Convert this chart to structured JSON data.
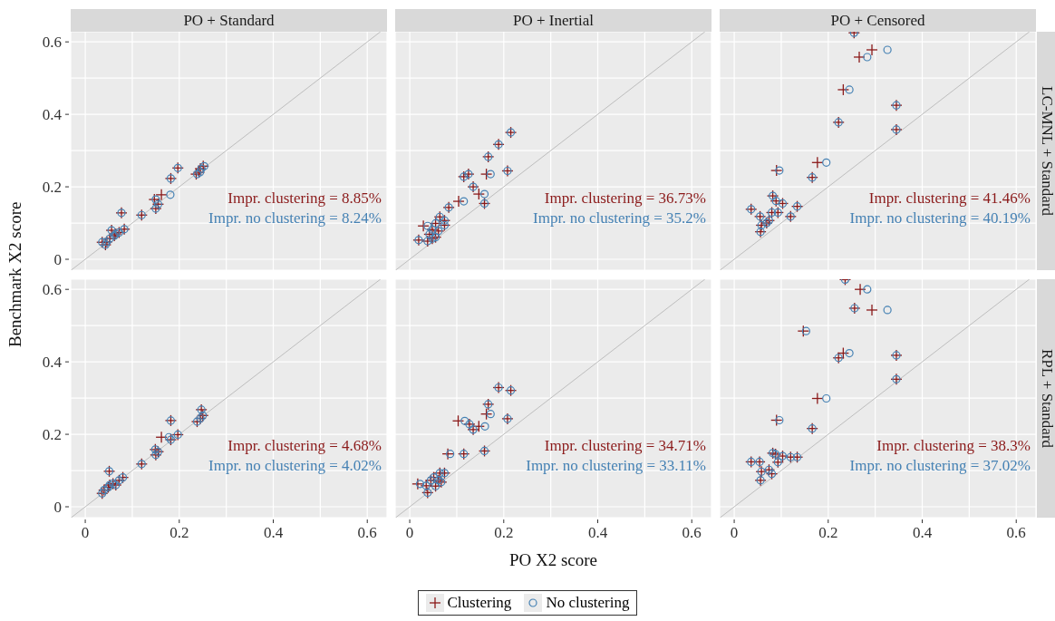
{
  "chart_data": [
    {
      "type": "scatter",
      "title": "PO + Standard",
      "ylabel": "Benchmark X2 score",
      "xlim": [
        -0.031,
        0.642
      ],
      "ylim": [
        -0.03,
        0.628
      ],
      "xticks": [
        0,
        {
          "value": 0.1,
          "label": null
        },
        0.2,
        {
          "value": 0.3,
          "label": null
        },
        0.4,
        {
          "value": 0.5,
          "label": null
        },
        0.6
      ],
      "yticks": [
        0,
        {
          "value": 0.1,
          "label": null
        },
        0.2,
        {
          "value": 0.3,
          "label": null
        },
        0.4,
        {
          "value": 0.5,
          "label": null
        },
        0.6
      ],
      "grid": true,
      "tick_labels": "y",
      "legend": "bottom",
      "annotations": [
        "Impr. clustering = 8.85%",
        "Impr. no clustering = 8.24%"
      ],
      "series": [
        {
          "type": "line",
          "color": "#bdbdbd",
          "x": [
            -0.03,
            0.628
          ],
          "values": [
            -0.03,
            0.628
          ]
        },
        {
          "name": "Clustering",
          "color": "#8b1a1a",
          "marker": "cross",
          "x": [
            0.251,
            0.245,
            0.242,
            0.236,
            0.197,
            0.182,
            0.162,
            0.147,
            0.155,
            0.15,
            0.077,
            0.12,
            0.083,
            0.056,
            0.072,
            0.065,
            0.062,
            0.052,
            0.046,
            0.036,
            0.043
          ],
          "values": [
            0.257,
            0.25,
            0.24,
            0.235,
            0.252,
            0.223,
            0.178,
            0.165,
            0.152,
            0.14,
            0.128,
            0.122,
            0.083,
            0.08,
            0.074,
            0.07,
            0.065,
            0.057,
            0.048,
            0.047,
            0.04
          ]
        },
        {
          "name": "No clustering",
          "color": "#4682b4",
          "marker": "circle",
          "x": [
            0.253,
            0.247,
            0.244,
            0.238,
            0.197,
            0.182,
            0.181,
            0.15,
            0.155,
            0.15,
            0.077,
            0.12,
            0.083,
            0.056,
            0.072,
            0.065,
            0.062,
            0.052,
            0.046,
            0.036,
            0.043
          ],
          "values": [
            0.257,
            0.25,
            0.24,
            0.235,
            0.252,
            0.223,
            0.178,
            0.165,
            0.152,
            0.14,
            0.128,
            0.122,
            0.083,
            0.08,
            0.074,
            0.07,
            0.065,
            0.057,
            0.048,
            0.047,
            0.04
          ]
        }
      ]
    },
    {
      "type": "scatter",
      "title": "PO + Inertial",
      "xlim": [
        -0.031,
        0.642
      ],
      "ylim": [
        -0.03,
        0.628
      ],
      "xticks": [
        0,
        {
          "value": 0.1,
          "label": null
        },
        0.2,
        {
          "value": 0.3,
          "label": null
        },
        0.4,
        {
          "value": 0.5,
          "label": null
        },
        0.6
      ],
      "yticks": [
        0,
        {
          "value": 0.1,
          "label": null
        },
        0.2,
        {
          "value": 0.3,
          "label": null
        },
        0.4,
        {
          "value": 0.5,
          "label": null
        },
        0.6
      ],
      "grid": true,
      "tick_labels": false,
      "annotations": [
        "Impr. clustering = 36.73%",
        "Impr. no clustering = 35.2%"
      ],
      "series": [
        {
          "type": "line",
          "color": "#bdbdbd",
          "x": [
            -0.03,
            0.628
          ],
          "values": [
            -0.03,
            0.628
          ]
        },
        {
          "color": "#8b1a1a",
          "marker": "cross",
          "x": [
            0.215,
            0.189,
            0.167,
            0.208,
            0.163,
            0.125,
            0.115,
            0.135,
            0.147,
            0.159,
            0.104,
            0.083,
            0.064,
            0.074,
            0.055,
            0.074,
            0.029,
            0.048,
            0.061,
            0.042,
            0.055,
            0.019,
            0.038,
            0.048
          ],
          "values": [
            0.35,
            0.317,
            0.283,
            0.244,
            0.235,
            0.235,
            0.228,
            0.2,
            0.18,
            0.154,
            0.16,
            0.143,
            0.117,
            0.107,
            0.099,
            0.094,
            0.092,
            0.082,
            0.078,
            0.069,
            0.061,
            0.053,
            0.05,
            0.057
          ]
        },
        {
          "color": "#4682b4",
          "marker": "circle",
          "x": [
            0.215,
            0.189,
            0.167,
            0.208,
            0.172,
            0.125,
            0.115,
            0.135,
            0.159,
            0.159,
            0.115,
            0.083,
            0.064,
            0.074,
            0.055,
            0.074,
            0.038,
            0.048,
            0.061,
            0.042,
            0.055,
            0.019,
            0.038,
            0.048
          ],
          "values": [
            0.35,
            0.317,
            0.283,
            0.244,
            0.235,
            0.235,
            0.228,
            0.2,
            0.18,
            0.154,
            0.16,
            0.143,
            0.117,
            0.107,
            0.099,
            0.094,
            0.092,
            0.082,
            0.078,
            0.069,
            0.061,
            0.053,
            0.05,
            0.057
          ]
        }
      ]
    },
    {
      "type": "scatter",
      "title": "PO + Censored",
      "y2label": "LC-MNL + Standard",
      "xlim": [
        -0.031,
        0.642
      ],
      "ylim": [
        -0.03,
        0.628
      ],
      "xticks": [
        0,
        {
          "value": 0.1,
          "label": null
        },
        0.2,
        {
          "value": 0.3,
          "label": null
        },
        0.4,
        {
          "value": 0.5,
          "label": null
        },
        0.6
      ],
      "yticks": [
        0,
        {
          "value": 0.1,
          "label": null
        },
        0.2,
        {
          "value": 0.3,
          "label": null
        },
        0.4,
        {
          "value": 0.5,
          "label": null
        },
        0.6
      ],
      "grid": true,
      "tick_labels": false,
      "annotations": [
        "Impr. clustering = 41.46%",
        "Impr. no clustering = 40.19%"
      ],
      "series": [
        {
          "type": "line",
          "color": "#bdbdbd",
          "x": [
            -0.03,
            0.628
          ],
          "values": [
            -0.03,
            0.628
          ]
        },
        {
          "color": "#8b1a1a",
          "marker": "cross",
          "x": [
            0.255,
            0.293,
            0.266,
            0.232,
            0.345,
            0.222,
            0.345,
            0.177,
            0.166,
            0.09,
            0.134,
            0.103,
            0.082,
            0.089,
            0.036,
            0.093,
            0.08,
            0.12,
            0.055,
            0.074,
            0.069,
            0.058,
            0.056
          ],
          "values": [
            0.625,
            0.578,
            0.558,
            0.468,
            0.425,
            0.378,
            0.358,
            0.267,
            0.226,
            0.245,
            0.146,
            0.154,
            0.175,
            0.161,
            0.138,
            0.129,
            0.129,
            0.118,
            0.118,
            0.107,
            0.1,
            0.094,
            0.076
          ]
        },
        {
          "color": "#4682b4",
          "marker": "circle",
          "x": [
            0.255,
            0.326,
            0.283,
            0.245,
            0.345,
            0.222,
            0.345,
            0.196,
            0.166,
            0.096,
            0.134,
            0.103,
            0.082,
            0.089,
            0.036,
            0.093,
            0.08,
            0.12,
            0.055,
            0.074,
            0.069,
            0.058,
            0.056
          ],
          "values": [
            0.625,
            0.578,
            0.558,
            0.468,
            0.425,
            0.378,
            0.358,
            0.267,
            0.226,
            0.245,
            0.146,
            0.154,
            0.175,
            0.161,
            0.138,
            0.129,
            0.129,
            0.118,
            0.118,
            0.107,
            0.1,
            0.094,
            0.076
          ]
        }
      ]
    },
    {
      "type": "scatter",
      "xlim": [
        -0.031,
        0.642
      ],
      "ylim": [
        -0.03,
        0.628
      ],
      "xticks": [
        0,
        {
          "value": 0.1,
          "label": null
        },
        0.2,
        {
          "value": 0.3,
          "label": null
        },
        0.4,
        {
          "value": 0.5,
          "label": null
        },
        0.6
      ],
      "yticks": [
        0,
        {
          "value": 0.1,
          "label": null
        },
        0.2,
        {
          "value": 0.3,
          "label": null
        },
        0.4,
        {
          "value": 0.5,
          "label": null
        },
        0.6
      ],
      "grid": true,
      "annotations": [
        "Impr. clustering = 4.68%",
        "Impr. no clustering = 4.02%"
      ],
      "series": [
        {
          "type": "line",
          "color": "#bdbdbd",
          "x": [
            -0.03,
            0.628
          ],
          "values": [
            -0.03,
            0.628
          ]
        },
        {
          "color": "#8b1a1a",
          "marker": "cross",
          "x": [
            0.247,
            0.25,
            0.245,
            0.238,
            0.182,
            0.197,
            0.162,
            0.182,
            0.149,
            0.155,
            0.15,
            0.12,
            0.051,
            0.08,
            0.072,
            0.059,
            0.049,
            0.04,
            0.036,
            0.065,
            0.052
          ],
          "values": [
            0.268,
            0.252,
            0.244,
            0.235,
            0.238,
            0.199,
            0.192,
            0.185,
            0.158,
            0.152,
            0.143,
            0.118,
            0.098,
            0.081,
            0.073,
            0.064,
            0.054,
            0.046,
            0.037,
            0.06,
            0.06
          ]
        },
        {
          "color": "#4682b4",
          "marker": "circle",
          "x": [
            0.247,
            0.25,
            0.245,
            0.238,
            0.182,
            0.197,
            0.178,
            0.182,
            0.149,
            0.155,
            0.15,
            0.12,
            0.051,
            0.08,
            0.072,
            0.059,
            0.049,
            0.04,
            0.036,
            0.065,
            0.052
          ],
          "values": [
            0.268,
            0.252,
            0.244,
            0.235,
            0.238,
            0.199,
            0.192,
            0.185,
            0.158,
            0.152,
            0.143,
            0.118,
            0.098,
            0.081,
            0.073,
            0.064,
            0.054,
            0.046,
            0.037,
            0.06,
            0.06
          ]
        }
      ]
    },
    {
      "type": "scatter",
      "xlabel": "PO X2 score",
      "xlim": [
        -0.031,
        0.642
      ],
      "ylim": [
        -0.03,
        0.628
      ],
      "xticks": [
        0,
        {
          "value": 0.1,
          "label": null
        },
        0.2,
        {
          "value": 0.3,
          "label": null
        },
        0.4,
        {
          "value": 0.5,
          "label": null
        },
        0.6
      ],
      "yticks": [
        0,
        {
          "value": 0.1,
          "label": null
        },
        0.2,
        {
          "value": 0.3,
          "label": null
        },
        0.4,
        {
          "value": 0.5,
          "label": null
        },
        0.6
      ],
      "grid": true,
      "tick_labels": "x",
      "annotations": [
        "Impr. clustering = 34.71%",
        "Impr. no clustering = 33.11%"
      ],
      "series": [
        {
          "type": "line",
          "color": "#bdbdbd",
          "x": [
            -0.03,
            0.628
          ],
          "values": [
            -0.03,
            0.628
          ]
        },
        {
          "color": "#8b1a1a",
          "marker": "cross",
          "x": [
            0.189,
            0.215,
            0.167,
            0.163,
            0.208,
            0.103,
            0.127,
            0.147,
            0.135,
            0.159,
            0.081,
            0.115,
            0.074,
            0.064,
            0.051,
            0.017,
            0.045,
            0.061,
            0.035,
            0.055,
            0.038,
            0.067
          ],
          "values": [
            0.329,
            0.321,
            0.283,
            0.256,
            0.243,
            0.237,
            0.228,
            0.222,
            0.213,
            0.154,
            0.146,
            0.146,
            0.093,
            0.093,
            0.081,
            0.063,
            0.073,
            0.073,
            0.058,
            0.057,
            0.039,
            0.068
          ]
        },
        {
          "color": "#4682b4",
          "marker": "circle",
          "x": [
            0.189,
            0.215,
            0.167,
            0.172,
            0.208,
            0.117,
            0.127,
            0.16,
            0.135,
            0.159,
            0.086,
            0.115,
            0.074,
            0.064,
            0.051,
            0.022,
            0.045,
            0.061,
            0.035,
            0.055,
            0.038,
            0.067
          ],
          "values": [
            0.329,
            0.321,
            0.283,
            0.256,
            0.243,
            0.237,
            0.228,
            0.222,
            0.213,
            0.154,
            0.146,
            0.146,
            0.093,
            0.093,
            0.081,
            0.063,
            0.073,
            0.073,
            0.058,
            0.057,
            0.039,
            0.068
          ]
        }
      ]
    },
    {
      "type": "scatter",
      "y2label": "RPL + Standard",
      "xlim": [
        -0.031,
        0.642
      ],
      "ylim": [
        -0.03,
        0.628
      ],
      "xticks": [
        0,
        {
          "value": 0.1,
          "label": null
        },
        0.2,
        {
          "value": 0.3,
          "label": null
        },
        0.4,
        {
          "value": 0.5,
          "label": null
        },
        0.6
      ],
      "yticks": [
        0,
        {
          "value": 0.1,
          "label": null
        },
        0.2,
        {
          "value": 0.3,
          "label": null
        },
        0.4,
        {
          "value": 0.5,
          "label": null
        },
        0.6
      ],
      "grid": true,
      "tick_labels": "x",
      "annotations": [
        "Impr. clustering = 38.3%",
        "Impr. no clustering = 37.02%"
      ],
      "series": [
        {
          "type": "line",
          "color": "#bdbdbd",
          "x": [
            -0.03,
            0.628
          ],
          "values": [
            -0.03,
            0.628
          ]
        },
        {
          "color": "#8b1a1a",
          "marker": "cross",
          "x": [
            0.236,
            0.268,
            0.293,
            0.256,
            0.147,
            0.232,
            0.222,
            0.345,
            0.345,
            0.177,
            0.166,
            0.09,
            0.134,
            0.12,
            0.103,
            0.082,
            0.088,
            0.093,
            0.036,
            0.054,
            0.074,
            0.058,
            0.08,
            0.056
          ],
          "values": [
            0.627,
            0.6,
            0.543,
            0.548,
            0.485,
            0.424,
            0.411,
            0.418,
            0.352,
            0.299,
            0.216,
            0.239,
            0.137,
            0.137,
            0.14,
            0.148,
            0.145,
            0.123,
            0.124,
            0.124,
            0.102,
            0.097,
            0.091,
            0.073
          ]
        },
        {
          "color": "#4682b4",
          "marker": "circle",
          "x": [
            0.236,
            0.283,
            0.326,
            0.256,
            0.153,
            0.245,
            0.222,
            0.345,
            0.345,
            0.196,
            0.166,
            0.096,
            0.134,
            0.12,
            0.103,
            0.082,
            0.088,
            0.093,
            0.036,
            0.054,
            0.074,
            0.058,
            0.08,
            0.056
          ],
          "values": [
            0.627,
            0.6,
            0.543,
            0.548,
            0.485,
            0.424,
            0.411,
            0.418,
            0.352,
            0.299,
            0.216,
            0.239,
            0.137,
            0.137,
            0.14,
            0.148,
            0.145,
            0.123,
            0.124,
            0.124,
            0.102,
            0.097,
            0.091,
            0.073
          ]
        }
      ]
    }
  ]
}
